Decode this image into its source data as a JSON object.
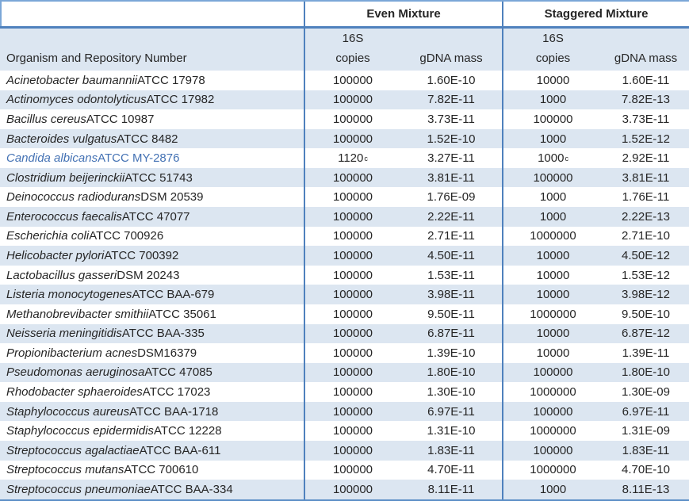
{
  "table": {
    "group_headers": {
      "even": "Even Mixture",
      "staggered": "Staggered Mixture"
    },
    "column_headers": {
      "organism": "Organism and Repository Number",
      "copies_line1": "16S",
      "copies_line2": "copies",
      "gdna_mass": "gDNA mass"
    },
    "colors": {
      "band_blue": "#dce6f1",
      "border_blue": "#4f81bd",
      "light_border_blue": "#7ba7d7",
      "highlight_text_blue": "#4472b4"
    },
    "rows": [
      {
        "organism_italic": "Acinetobacter baumannii",
        "organism_rest": " ATCC 17978",
        "even_copies": "100000",
        "even_copies_sup": "",
        "even_mass": "1.60E-10",
        "stag_copies": "10000",
        "stag_copies_sup": "",
        "stag_mass": "1.60E-11",
        "highlighted": false
      },
      {
        "organism_italic": "Actinomyces odontolyticus",
        "organism_rest": " ATCC 17982",
        "even_copies": "100000",
        "even_copies_sup": "",
        "even_mass": "7.82E-11",
        "stag_copies": "1000",
        "stag_copies_sup": "",
        "stag_mass": "7.82E-13",
        "highlighted": false
      },
      {
        "organism_italic": "Bacillus cereus",
        "organism_rest": " ATCC 10987",
        "even_copies": "100000",
        "even_copies_sup": "",
        "even_mass": "3.73E-11",
        "stag_copies": "100000",
        "stag_copies_sup": "",
        "stag_mass": "3.73E-11",
        "highlighted": false
      },
      {
        "organism_italic": "Bacteroides vulgatus",
        "organism_rest": " ATCC 8482",
        "even_copies": "100000",
        "even_copies_sup": "",
        "even_mass": "1.52E-10",
        "stag_copies": "1000",
        "stag_copies_sup": "",
        "stag_mass": "1.52E-12",
        "highlighted": false
      },
      {
        "organism_italic": "Candida albicans",
        "organism_rest": " ATCC MY-2876",
        "even_copies": "1120",
        "even_copies_sup": "c",
        "even_mass": "3.27E-11",
        "stag_copies": "1000",
        "stag_copies_sup": "c",
        "stag_mass": "2.92E-11",
        "highlighted": true
      },
      {
        "organism_italic": "Clostridium beijerinckii",
        "organism_rest": " ATCC 51743",
        "even_copies": "100000",
        "even_copies_sup": "",
        "even_mass": "3.81E-11",
        "stag_copies": "100000",
        "stag_copies_sup": "",
        "stag_mass": "3.81E-11",
        "highlighted": false
      },
      {
        "organism_italic": "Deinococcus radiodurans",
        "organism_rest": " DSM 20539",
        "even_copies": "100000",
        "even_copies_sup": "",
        "even_mass": "1.76E-09",
        "stag_copies": "1000",
        "stag_copies_sup": "",
        "stag_mass": "1.76E-11",
        "highlighted": false
      },
      {
        "organism_italic": "Enterococcus faecalis",
        "organism_rest": " ATCC 47077",
        "even_copies": "100000",
        "even_copies_sup": "",
        "even_mass": "2.22E-11",
        "stag_copies": "1000",
        "stag_copies_sup": "",
        "stag_mass": "2.22E-13",
        "highlighted": false
      },
      {
        "organism_italic": "Escherichia coli",
        "organism_rest": " ATCC 700926",
        "even_copies": "100000",
        "even_copies_sup": "",
        "even_mass": "2.71E-11",
        "stag_copies": "1000000",
        "stag_copies_sup": "",
        "stag_mass": "2.71E-10",
        "highlighted": false
      },
      {
        "organism_italic": "Helicobacter pylori",
        "organism_rest": " ATCC 700392",
        "even_copies": "100000",
        "even_copies_sup": "",
        "even_mass": "4.50E-11",
        "stag_copies": "10000",
        "stag_copies_sup": "",
        "stag_mass": "4.50E-12",
        "highlighted": false
      },
      {
        "organism_italic": "Lactobacillus gasseri",
        "organism_rest": " DSM 20243",
        "even_copies": "100000",
        "even_copies_sup": "",
        "even_mass": "1.53E-11",
        "stag_copies": "10000",
        "stag_copies_sup": "",
        "stag_mass": "1.53E-12",
        "highlighted": false
      },
      {
        "organism_italic": "Listeria monocytogenes",
        "organism_rest": " ATCC BAA-679",
        "even_copies": "100000",
        "even_copies_sup": "",
        "even_mass": "3.98E-11",
        "stag_copies": "10000",
        "stag_copies_sup": "",
        "stag_mass": "3.98E-12",
        "highlighted": false
      },
      {
        "organism_italic": "Methanobrevibacter smithii",
        "organism_rest": " ATCC 35061",
        "even_copies": "100000",
        "even_copies_sup": "",
        "even_mass": "9.50E-11",
        "stag_copies": "1000000",
        "stag_copies_sup": "",
        "stag_mass": "9.50E-10",
        "highlighted": false
      },
      {
        "organism_italic": "Neisseria meningitidis",
        "organism_rest": " ATCC BAA-335",
        "even_copies": "100000",
        "even_copies_sup": "",
        "even_mass": "6.87E-11",
        "stag_copies": "10000",
        "stag_copies_sup": "",
        "stag_mass": "6.87E-12",
        "highlighted": false
      },
      {
        "organism_italic": "Propionibacterium acnes",
        "organism_rest": " DSM16379",
        "even_copies": "100000",
        "even_copies_sup": "",
        "even_mass": "1.39E-10",
        "stag_copies": "10000",
        "stag_copies_sup": "",
        "stag_mass": "1.39E-11",
        "highlighted": false
      },
      {
        "organism_italic": "Pseudomonas aeruginosa",
        "organism_rest": " ATCC 47085",
        "even_copies": "100000",
        "even_copies_sup": "",
        "even_mass": "1.80E-10",
        "stag_copies": "100000",
        "stag_copies_sup": "",
        "stag_mass": "1.80E-10",
        "highlighted": false
      },
      {
        "organism_italic": "Rhodobacter sphaeroides",
        "organism_rest": " ATCC 17023",
        "even_copies": "100000",
        "even_copies_sup": "",
        "even_mass": "1.30E-10",
        "stag_copies": "1000000",
        "stag_copies_sup": "",
        "stag_mass": "1.30E-09",
        "highlighted": false
      },
      {
        "organism_italic": "Staphylococcus aureus",
        "organism_rest": " ATCC BAA-1718",
        "even_copies": "100000",
        "even_copies_sup": "",
        "even_mass": "6.97E-11",
        "stag_copies": "100000",
        "stag_copies_sup": "",
        "stag_mass": "6.97E-11",
        "highlighted": false
      },
      {
        "organism_italic": "Staphylococcus epidermidis",
        "organism_rest": " ATCC 12228",
        "even_copies": "100000",
        "even_copies_sup": "",
        "even_mass": "1.31E-10",
        "stag_copies": "1000000",
        "stag_copies_sup": "",
        "stag_mass": "1.31E-09",
        "highlighted": false
      },
      {
        "organism_italic": "Streptococcus agalactiae",
        "organism_rest": " ATCC BAA-611",
        "even_copies": "100000",
        "even_copies_sup": "",
        "even_mass": "1.83E-11",
        "stag_copies": "100000",
        "stag_copies_sup": "",
        "stag_mass": "1.83E-11",
        "highlighted": false
      },
      {
        "organism_italic": "Streptococcus mutans",
        "organism_rest": " ATCC 700610",
        "even_copies": "100000",
        "even_copies_sup": "",
        "even_mass": "4.70E-11",
        "stag_copies": "1000000",
        "stag_copies_sup": "",
        "stag_mass": "4.70E-10",
        "highlighted": false
      },
      {
        "organism_italic": "Streptococcus pneumoniae",
        "organism_rest": " ATCC BAA-334",
        "even_copies": "100000",
        "even_copies_sup": "",
        "even_mass": "8.11E-11",
        "stag_copies": "1000",
        "stag_copies_sup": "",
        "stag_mass": "8.11E-13",
        "highlighted": false
      }
    ]
  }
}
